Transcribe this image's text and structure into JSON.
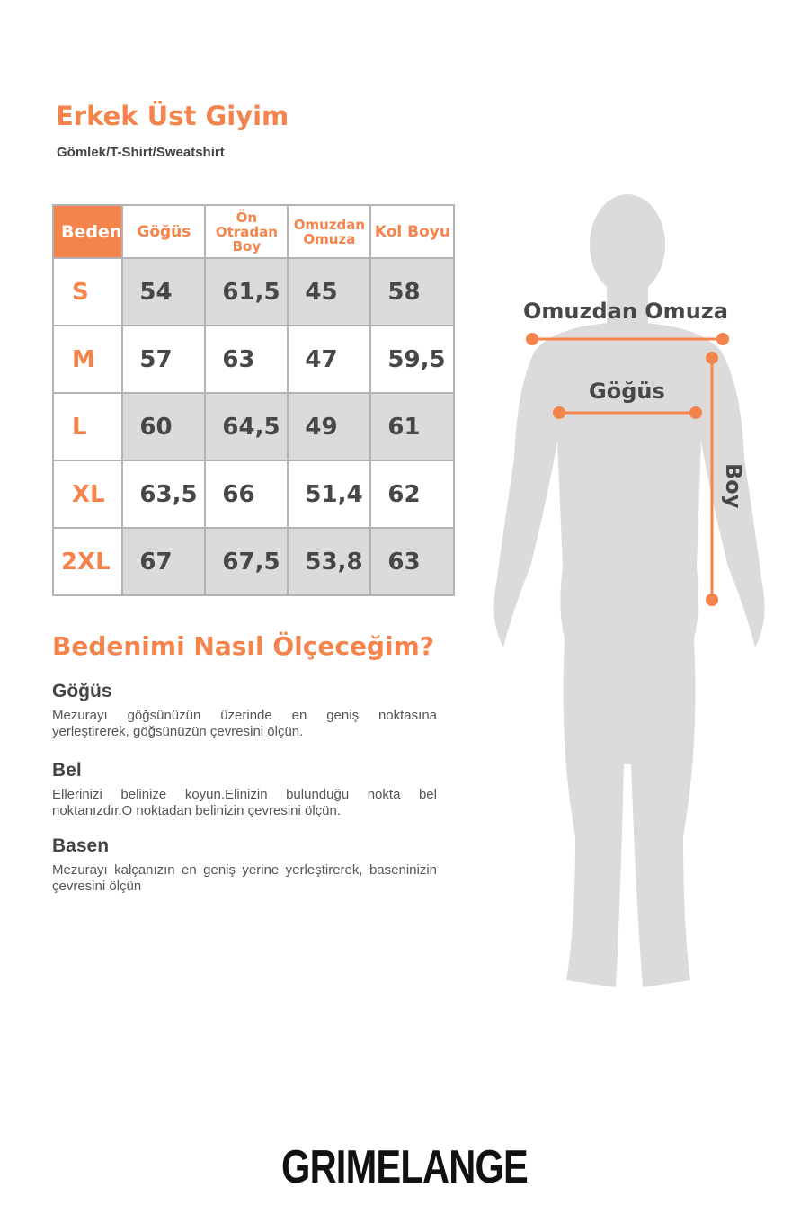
{
  "title": "Erkek Üst Giyim",
  "subtitle": "Gömlek/T-Shirt/Sweatshirt",
  "table": {
    "headers": [
      "Beden",
      "Göğüs",
      "Ön Otradan Boy",
      "Omuzdan Omuza",
      "Kol Boyu"
    ],
    "rows": [
      [
        "S",
        "54",
        "61,5",
        "45",
        "58"
      ],
      [
        "M",
        "57",
        "63",
        "47",
        "59,5"
      ],
      [
        "L",
        "60",
        "64,5",
        "49",
        "61"
      ],
      [
        "XL",
        "63,5",
        "66",
        "51,4",
        "62"
      ],
      [
        "2XL",
        "67",
        "67,5",
        "53,8",
        "63"
      ]
    ]
  },
  "howto": {
    "title": "Bedenimi Nasıl Ölçeceğim?",
    "sections": [
      {
        "heading": "Göğüs",
        "text": "Mezurayı göğsünüzün üzerinde en geniş noktasına yerleştirerek, göğsünüzün çevresini ölçün."
      },
      {
        "heading": "Bel",
        "text": "Ellerinizi belinize koyun.Elinizin bulunduğu nokta bel noktanızdır.O noktadan belinizin çevresini ölçün."
      },
      {
        "heading": "Basen",
        "text": "Mezurayı kalçanızın en geniş yerine yerleştirerek, baseninizin çevresini ölçün"
      }
    ]
  },
  "figure": {
    "shoulder_label": "Omuzdan Omuza",
    "chest_label": "Göğüs",
    "length_label": "Boy"
  },
  "brand": "GRIMELANGE",
  "colors": {
    "accent": "#f5844c",
    "silhouette": "#dcdbdc",
    "text": "#474747"
  }
}
